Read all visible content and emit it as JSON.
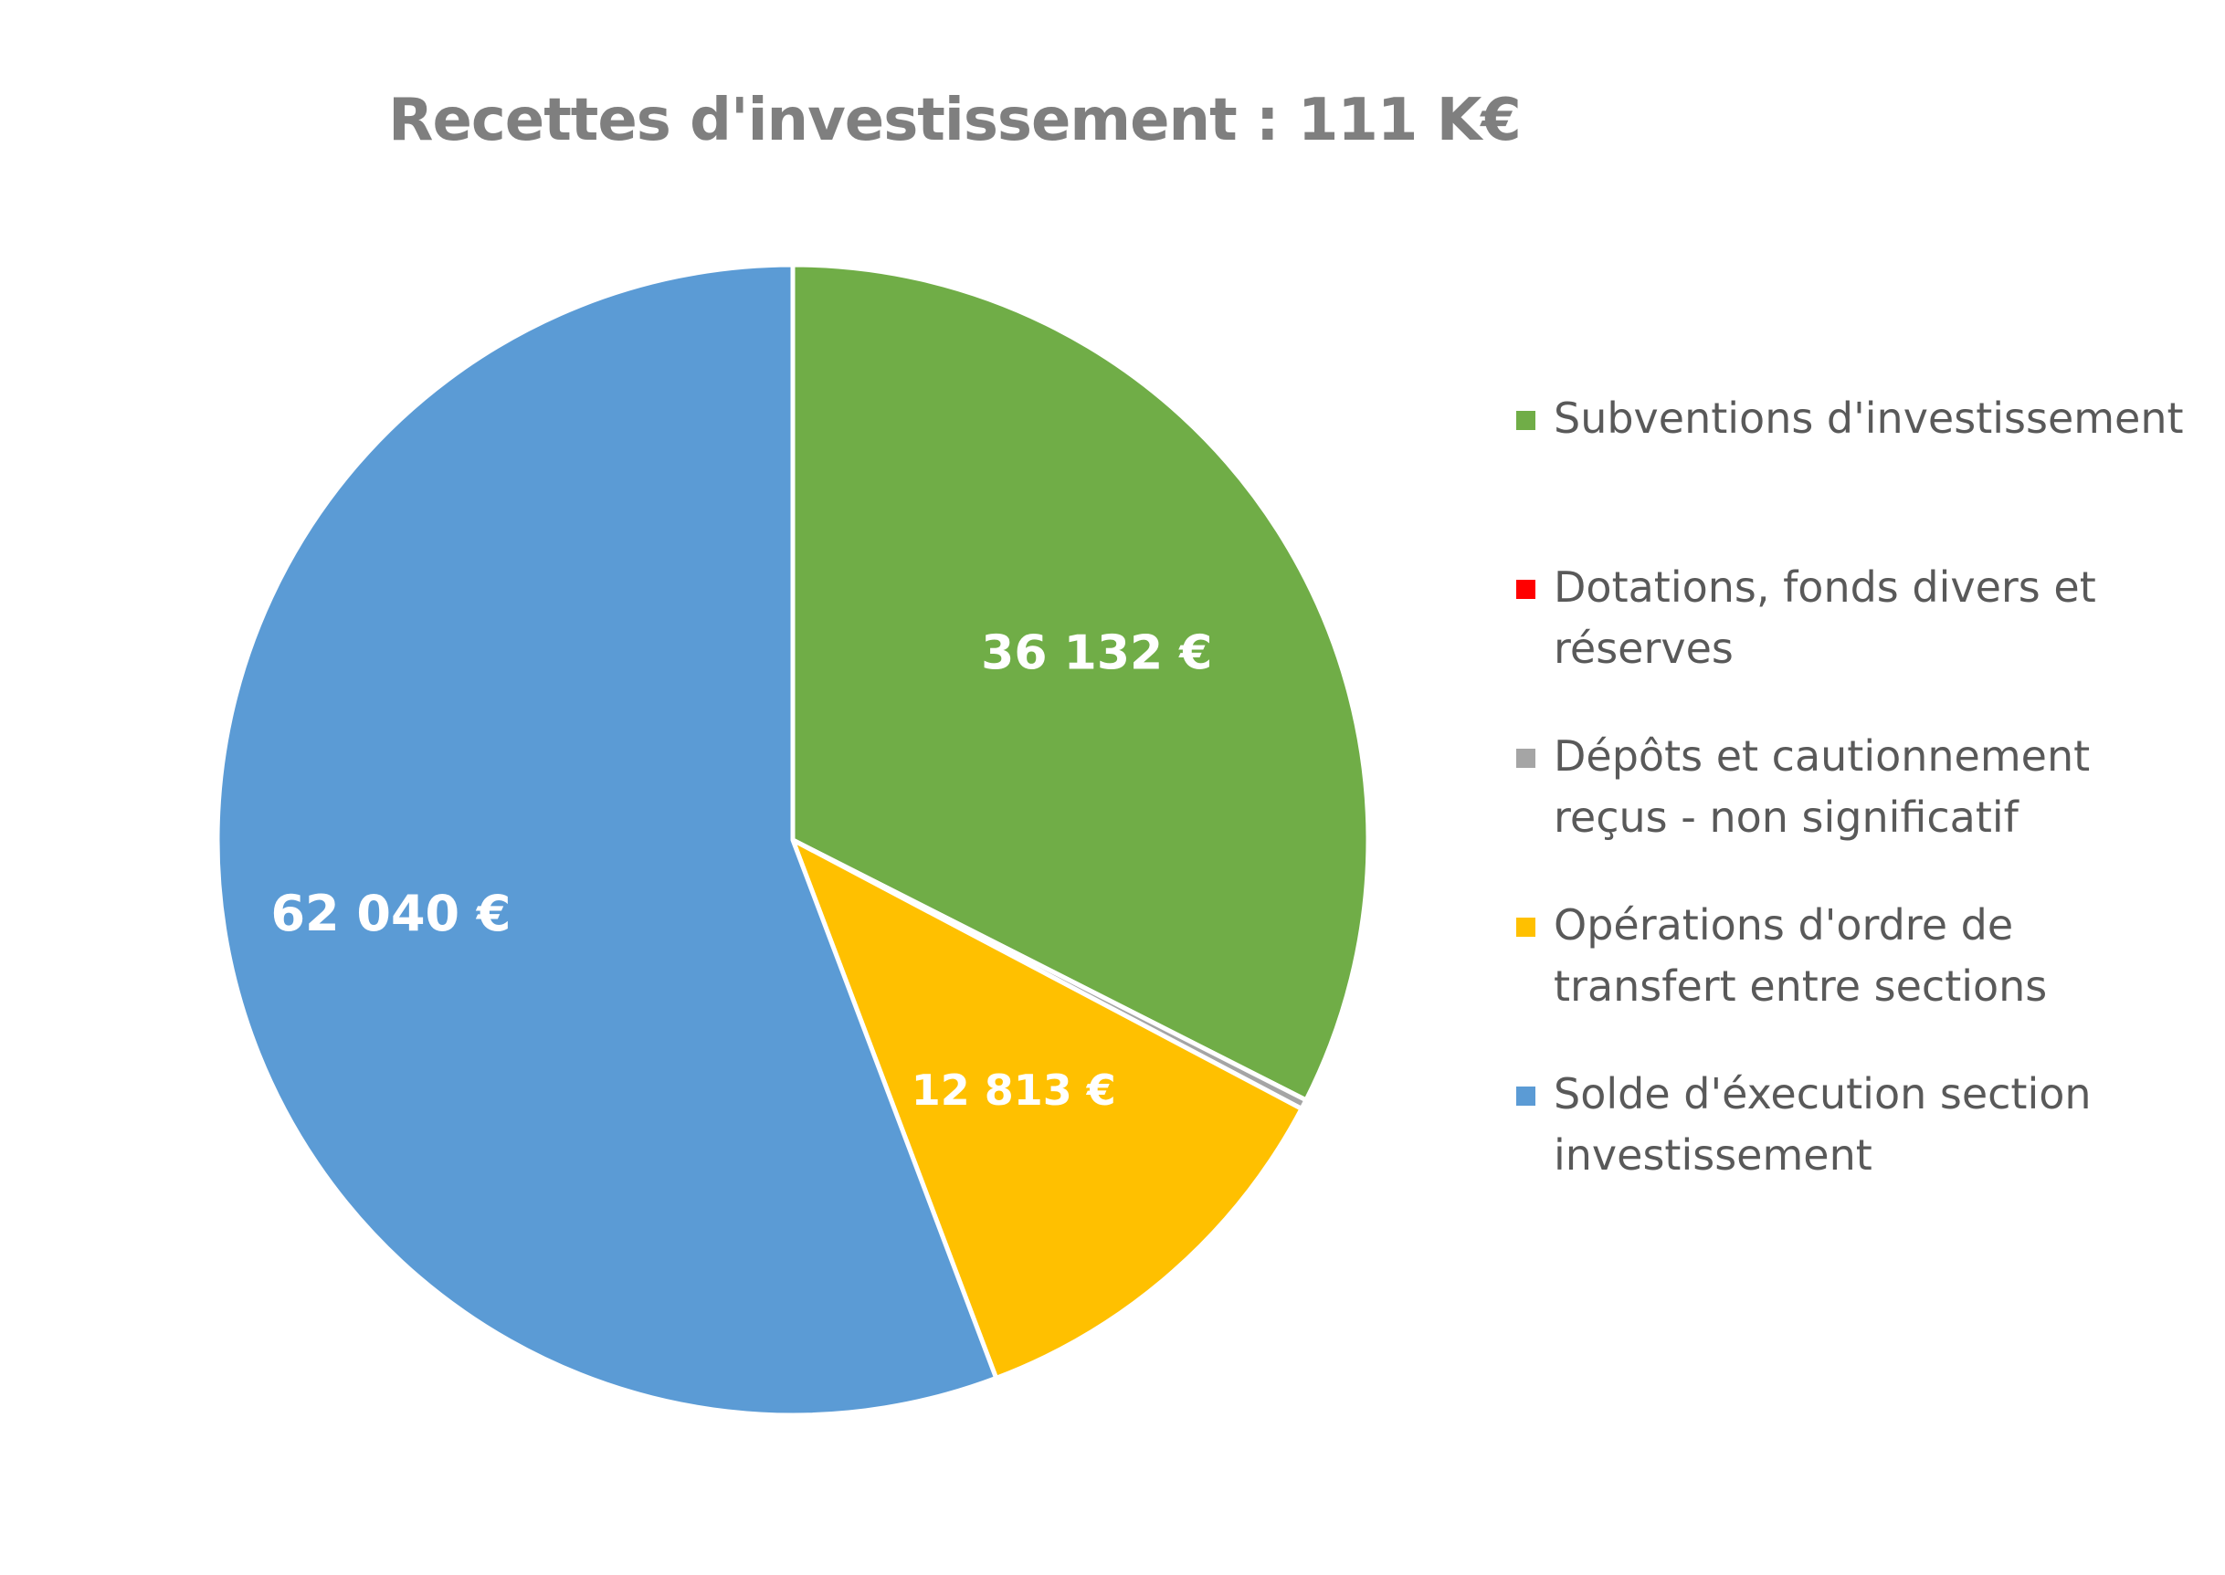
{
  "chart_data": {
    "type": "pie",
    "title": "Recettes d'investissement  : 111 K€",
    "slices": [
      {
        "name": "Subventions d'investissement",
        "value": 36132,
        "label": "36 132 €",
        "color": "#70ad47"
      },
      {
        "name": "Dotations, fonds divers et réserves",
        "value": 0,
        "label": "",
        "color": "#ff0000"
      },
      {
        "name": "Dépôts et cautionnement reçus - non significatif",
        "value": 300,
        "label": "",
        "color": "#a5a5a5"
      },
      {
        "name": "Opérations d'ordre de transfert entre sections",
        "value": 12813,
        "label": "12 813 €",
        "color": "#ffc000"
      },
      {
        "name": "Solde d'éxecution section investissement",
        "value": 62040,
        "label": "62 040 €",
        "color": "#5b9bd5"
      }
    ],
    "legend_position": "right",
    "start_angle": "12 o'clock",
    "direction": "clockwise"
  }
}
